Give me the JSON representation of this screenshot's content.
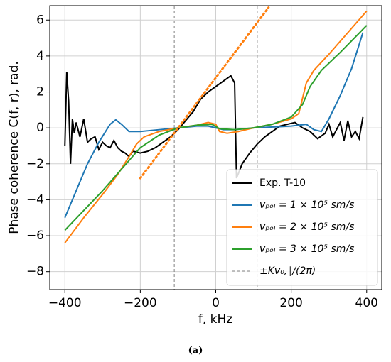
{
  "chart_data": {
    "type": "line",
    "xlabel": "f, kHz",
    "ylabel": "Phase coherence C(f, r), rad.",
    "caption": "(a)",
    "xlim": [
      -440,
      440
    ],
    "ylim": [
      -9,
      6.8
    ],
    "xticks": [
      {
        "value": -400,
        "label": "−400"
      },
      {
        "value": -200,
        "label": "−200"
      },
      0,
      200,
      400
    ],
    "yticks": [
      {
        "value": -8,
        "label": "−8"
      },
      {
        "value": -6,
        "label": "−6"
      },
      {
        "value": -4,
        "label": "−4"
      },
      {
        "value": -2,
        "label": "−2"
      },
      0,
      2,
      4,
      6
    ],
    "grid": true,
    "legend": "lower right",
    "series": [
      {
        "name": "Exp. T-10",
        "color": "#000000",
        "x": [
          -400,
          -395,
          -390,
          -385,
          -380,
          -375,
          -370,
          -360,
          -350,
          -340,
          -330,
          -320,
          -310,
          -300,
          -290,
          -280,
          -270,
          -260,
          -250,
          -240,
          -230,
          -220,
          -200,
          -180,
          -160,
          -140,
          -120,
          -100,
          -80,
          -60,
          -40,
          -20,
          0,
          20,
          40,
          50,
          55,
          70,
          90,
          110,
          130,
          150,
          170,
          190,
          210,
          230,
          250,
          270,
          290,
          300,
          310,
          320,
          330,
          340,
          350,
          360,
          370,
          380,
          390
        ],
        "values": [
          -1,
          3.1,
          1.5,
          -2,
          0.5,
          -0.3,
          0.3,
          -0.5,
          0.5,
          -0.8,
          -0.6,
          -0.5,
          -1.2,
          -0.8,
          -1,
          -1.1,
          -0.7,
          -1.1,
          -1.3,
          -1.4,
          -1.6,
          -1.3,
          -1.4,
          -1.3,
          -1.1,
          -0.8,
          -0.5,
          -0.1,
          0.4,
          0.9,
          1.6,
          2.0,
          2.3,
          2.6,
          2.9,
          2.5,
          -2.8,
          -2.0,
          -1.4,
          -0.9,
          -0.5,
          -0.2,
          0.1,
          0.2,
          0.3,
          0.0,
          -0.2,
          -0.6,
          -0.3,
          0.2,
          -0.5,
          -0.1,
          0.3,
          -0.7,
          0.4,
          -0.5,
          -0.2,
          -0.6,
          0.6
        ]
      },
      {
        "name": "vₚₒₗ = 1 × 10⁵ sm/s",
        "color": "#1f77b4",
        "x": [
          -400,
          -370,
          -340,
          -310,
          -280,
          -265,
          -250,
          -230,
          -200,
          -150,
          -100,
          -50,
          -20,
          0,
          20,
          50,
          100,
          150,
          200,
          240,
          260,
          280,
          300,
          330,
          360,
          390
        ],
        "values": [
          -5,
          -3.5,
          -2,
          -0.8,
          0.2,
          0.45,
          0.2,
          -0.2,
          -0.2,
          -0.1,
          0,
          0.1,
          0.1,
          0,
          -0.1,
          -0.1,
          0,
          0.05,
          0.1,
          0.2,
          -0.1,
          -0.2,
          0.5,
          1.8,
          3.3,
          5.3
        ]
      },
      {
        "name": "vₚₒₗ = 2 × 10⁵ sm/s",
        "color": "#ff7f0e",
        "x": [
          -400,
          -350,
          -300,
          -260,
          -230,
          -210,
          -190,
          -150,
          -100,
          -50,
          -20,
          0,
          10,
          30,
          60,
          100,
          150,
          200,
          220,
          240,
          260,
          300,
          350,
          400
        ],
        "values": [
          -6.4,
          -5,
          -3.7,
          -2.6,
          -1.6,
          -0.9,
          -0.5,
          -0.2,
          0,
          0.15,
          0.3,
          0.2,
          -0.2,
          -0.3,
          -0.2,
          0,
          0.2,
          0.5,
          0.8,
          2.5,
          3.2,
          4.1,
          5.3,
          6.5
        ]
      },
      {
        "name": "vₚₒₗ = 3 × 10⁵ sm/s",
        "color": "#2ca02c",
        "x": [
          -400,
          -350,
          -300,
          -250,
          -200,
          -150,
          -100,
          -50,
          -10,
          10,
          50,
          100,
          150,
          200,
          230,
          250,
          280,
          330,
          400
        ],
        "values": [
          -5.7,
          -4.6,
          -3.5,
          -2.3,
          -1.1,
          -0.4,
          0,
          0.15,
          0.2,
          -0.05,
          -0.1,
          0,
          0.2,
          0.6,
          1.3,
          2.3,
          3.2,
          4.2,
          5.7
        ]
      },
      {
        "color": "#ff7f0e",
        "style": "dotted",
        "x": [
          -200,
          140
        ],
        "values": [
          -2.8,
          6.7
        ]
      }
    ],
    "vlines": {
      "name": "±Kv₀,∥/(2π)",
      "color": "#808080",
      "values": [
        -110,
        110
      ]
    }
  }
}
